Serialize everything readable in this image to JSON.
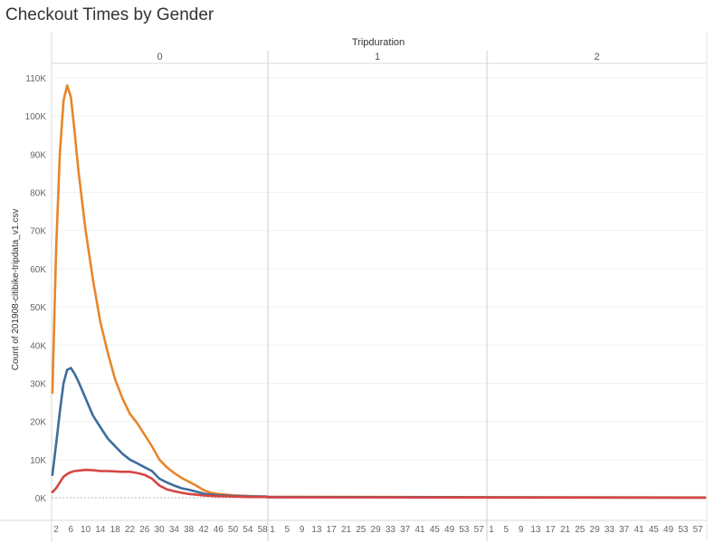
{
  "chart_data": {
    "type": "line",
    "title": "Checkout Times by Gender",
    "column_header": "Tripduration",
    "panels": [
      "0",
      "1",
      "2"
    ],
    "ylabel": "Count of 201908-citibike-tripdata_v1.csv",
    "ylim": [
      0,
      112000
    ],
    "yticks": [
      0,
      10000,
      20000,
      30000,
      40000,
      50000,
      60000,
      70000,
      80000,
      90000,
      100000,
      110000
    ],
    "ytick_labels": [
      "0K",
      "10K",
      "20K",
      "30K",
      "40K",
      "50K",
      "60K",
      "70K",
      "80K",
      "90K",
      "100K",
      "110K"
    ],
    "x_minutes": [
      1,
      2,
      3,
      4,
      5,
      6,
      7,
      8,
      10,
      12,
      14,
      16,
      18,
      20,
      22,
      24,
      26,
      28,
      30,
      32,
      34,
      36,
      38,
      40,
      42,
      44,
      46,
      48,
      50,
      52,
      54,
      56,
      58,
      59
    ],
    "xtick_labels": [
      [
        "2",
        "6",
        "10",
        "14",
        "18",
        "22",
        "26",
        "30",
        "34",
        "38",
        "42",
        "46",
        "50",
        "54",
        "58"
      ],
      [
        "1",
        "5",
        "9",
        "13",
        "17",
        "21",
        "25",
        "29",
        "33",
        "37",
        "41",
        "45",
        "49",
        "53",
        "57"
      ],
      [
        "1",
        "5",
        "9",
        "13",
        "17",
        "21",
        "25",
        "29",
        "33",
        "37",
        "41",
        "45",
        "49",
        "53",
        "57"
      ]
    ],
    "grid": true,
    "series": [
      {
        "color": "#e8862a",
        "panel0": [
          27500,
          65000,
          90000,
          104000,
          108000,
          105000,
          96000,
          86000,
          70000,
          57000,
          46000,
          38000,
          31000,
          26000,
          22000,
          19500,
          16500,
          13500,
          10000,
          8000,
          6500,
          5200,
          4200,
          3200,
          2000,
          1300,
          1000,
          800,
          650,
          550,
          450,
          400,
          350,
          300
        ],
        "panel1": 250,
        "panel2": 150
      },
      {
        "color": "#3d6d9c",
        "panel0": [
          6000,
          14000,
          22500,
          30000,
          33500,
          34000,
          32500,
          30500,
          26000,
          21500,
          18500,
          15500,
          13500,
          11500,
          10000,
          9000,
          8000,
          7000,
          5000,
          4000,
          3200,
          2500,
          2100,
          1600,
          1100,
          800,
          650,
          550,
          450,
          400,
          350,
          300,
          300,
          300
        ],
        "panel1": 200,
        "panel2": 100
      },
      {
        "color": "#d64545",
        "panel0": [
          1500,
          2500,
          4000,
          5500,
          6200,
          6700,
          7000,
          7100,
          7300,
          7200,
          7000,
          7000,
          6900,
          6800,
          6800,
          6500,
          6000,
          5000,
          3200,
          2200,
          1700,
          1300,
          1000,
          800,
          600,
          500,
          400,
          350,
          300,
          250,
          200,
          200,
          200,
          200
        ],
        "panel1": 100,
        "panel2": 50
      }
    ]
  }
}
